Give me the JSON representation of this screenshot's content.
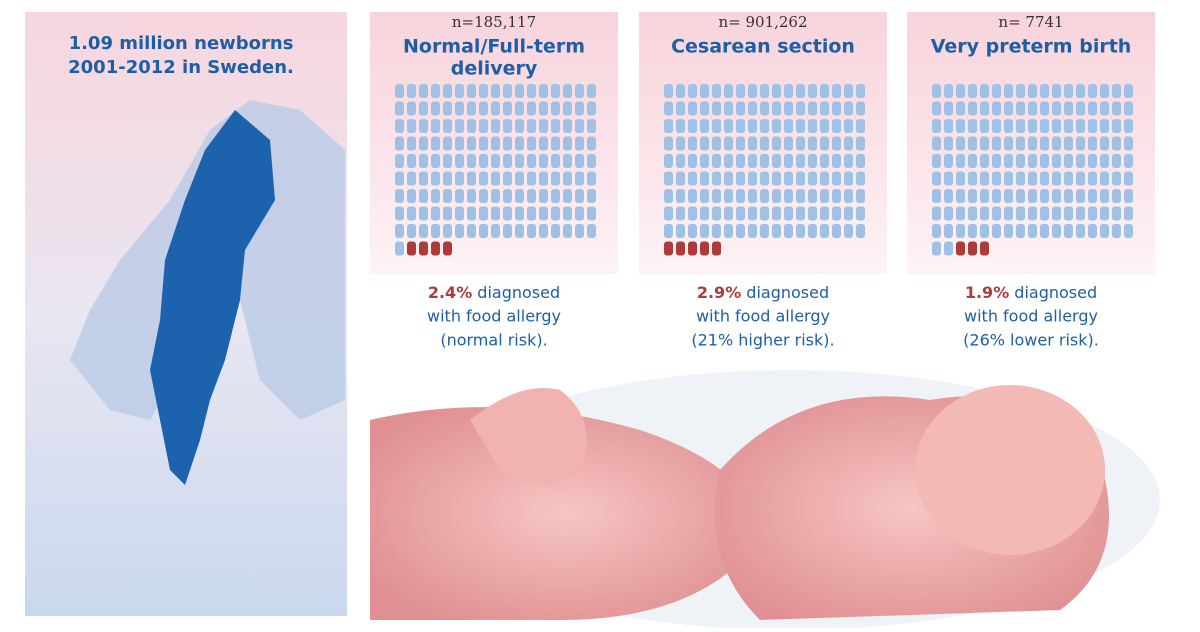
{
  "map": {
    "title_lines": [
      "1.09 million newborns",
      "2001-2012 in Sweden."
    ]
  },
  "panels": [
    {
      "n": "n=185,117",
      "title_lines": [
        "Normal/Full-term",
        "delivery"
      ],
      "percent": 2.4,
      "percent_label": "2.4%",
      "caption_lines": [
        " diagnosed",
        "with food allergy",
        "(normal risk)."
      ]
    },
    {
      "n": "n= 901,262",
      "title_lines": [
        "Cesarean section"
      ],
      "percent": 2.9,
      "percent_label": "2.9%",
      "caption_lines": [
        " diagnosed",
        "with food allergy",
        "(21% higher risk)."
      ]
    },
    {
      "n": "n= 7741",
      "title_lines": [
        "Very preterm birth"
      ],
      "percent": 1.9,
      "percent_label": "1.9%",
      "caption_lines": [
        " diagnosed",
        "with food allergy",
        "(26% lower risk)."
      ]
    }
  ]
}
